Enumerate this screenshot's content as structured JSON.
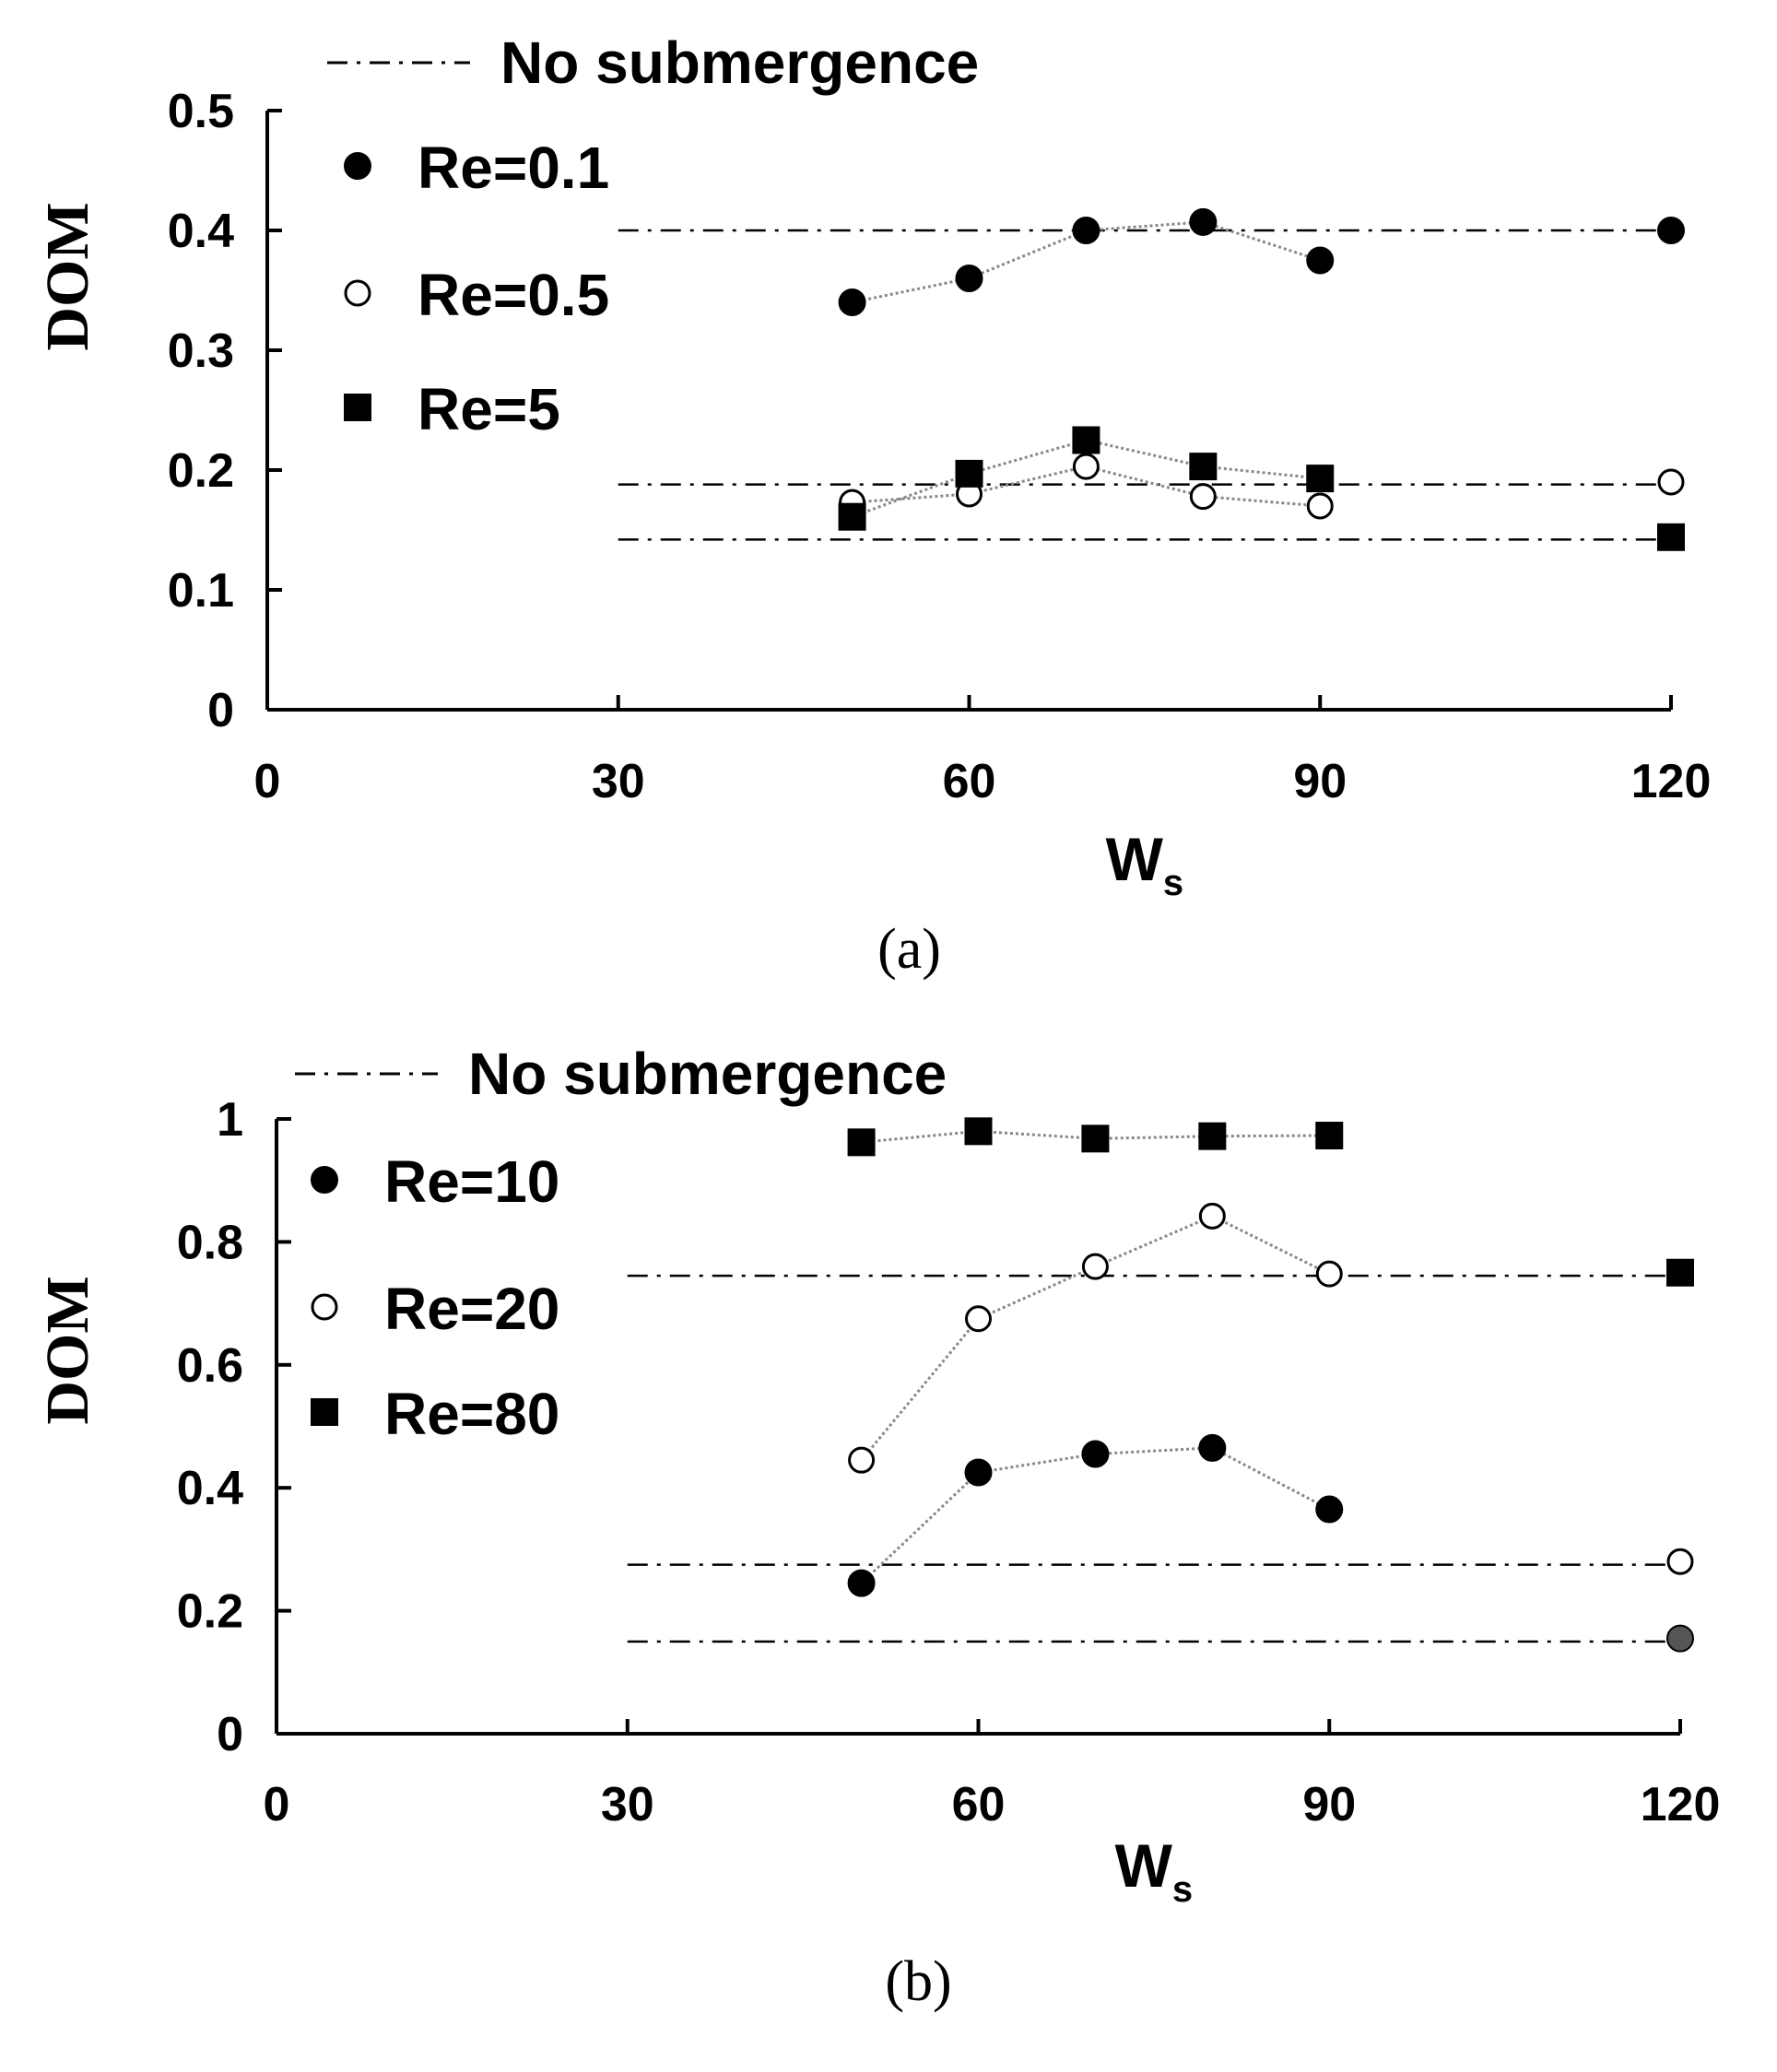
{
  "colors": {
    "ink": "#000000",
    "dashdot": "#000000",
    "connector": "#888888",
    "gray_marker": "#555555",
    "background": "#ffffff"
  },
  "chart_data": [
    {
      "panel_label": "(a)",
      "panel_letter": "a",
      "type": "scatter",
      "title": "",
      "xlabel": "W",
      "xlabel_sub": "s",
      "ylabel": "DOM",
      "xlim": [
        0,
        120
      ],
      "ylim": [
        0,
        0.5
      ],
      "x_ticks": [
        0,
        30,
        60,
        90,
        120
      ],
      "x_tick_labels": [
        "0",
        "30",
        "60",
        "90",
        "120"
      ],
      "y_ticks": [
        0,
        0.1,
        0.2,
        0.3,
        0.4,
        0.5
      ],
      "y_tick_labels": [
        "0",
        "0.1",
        "0.2",
        "0.3",
        "0.4",
        "0.5"
      ],
      "legend_no_sub": "No submergence",
      "series": [
        {
          "name": "Re=0.1",
          "marker": "filled-circle",
          "x": [
            50,
            60,
            70,
            80,
            90
          ],
          "y": [
            0.34,
            0.36,
            0.4,
            0.407,
            0.375
          ],
          "no_submergence_x": 120,
          "no_submergence_y": 0.4
        },
        {
          "name": "Re=0.5",
          "marker": "open-circle",
          "x": [
            50,
            60,
            70,
            80,
            90
          ],
          "y": [
            0.173,
            0.18,
            0.203,
            0.178,
            0.17
          ],
          "no_submergence_x": 120,
          "no_submergence_y": 0.19
        },
        {
          "name": "Re=5",
          "marker": "filled-square",
          "x": [
            50,
            60,
            70,
            80,
            90
          ],
          "y": [
            0.161,
            0.197,
            0.225,
            0.203,
            0.193
          ],
          "no_submergence_x": 120,
          "no_submergence_y": 0.144
        }
      ],
      "no_submergence_lines": [
        0.4,
        0.188,
        0.142
      ]
    },
    {
      "panel_label": "(b)",
      "panel_letter": "b",
      "type": "scatter",
      "title": "",
      "xlabel": "W",
      "xlabel_sub": "s",
      "ylabel": "DOM",
      "xlim": [
        0,
        120
      ],
      "ylim": [
        0,
        1
      ],
      "x_ticks": [
        0,
        30,
        60,
        90,
        120
      ],
      "x_tick_labels": [
        "0",
        "30",
        "60",
        "90",
        "120"
      ],
      "y_ticks": [
        0,
        0.2,
        0.4,
        0.6,
        0.8,
        1.0
      ],
      "y_tick_labels": [
        "0",
        "0.2",
        "0.4",
        "0.6",
        "0.8",
        "1"
      ],
      "legend_no_sub": "No submergence",
      "series": [
        {
          "name": "Re=10",
          "marker": "filled-circle",
          "x": [
            50,
            60,
            70,
            80,
            90
          ],
          "y": [
            0.245,
            0.425,
            0.455,
            0.465,
            0.365
          ],
          "no_submergence_x": 120,
          "no_submergence_y": 0.155,
          "no_submergence_gray": true
        },
        {
          "name": "Re=20",
          "marker": "open-circle",
          "x": [
            50,
            60,
            70,
            80,
            90
          ],
          "y": [
            0.445,
            0.675,
            0.76,
            0.842,
            0.748
          ],
          "no_submergence_x": 120,
          "no_submergence_y": 0.28
        },
        {
          "name": "Re=80",
          "marker": "filled-square",
          "x": [
            50,
            60,
            70,
            80,
            90
          ],
          "y": [
            0.962,
            0.98,
            0.968,
            0.972,
            0.973
          ],
          "no_submergence_x": 120,
          "no_submergence_y": 0.75
        }
      ],
      "no_submergence_lines": [
        0.745,
        0.275,
        0.15
      ]
    }
  ]
}
